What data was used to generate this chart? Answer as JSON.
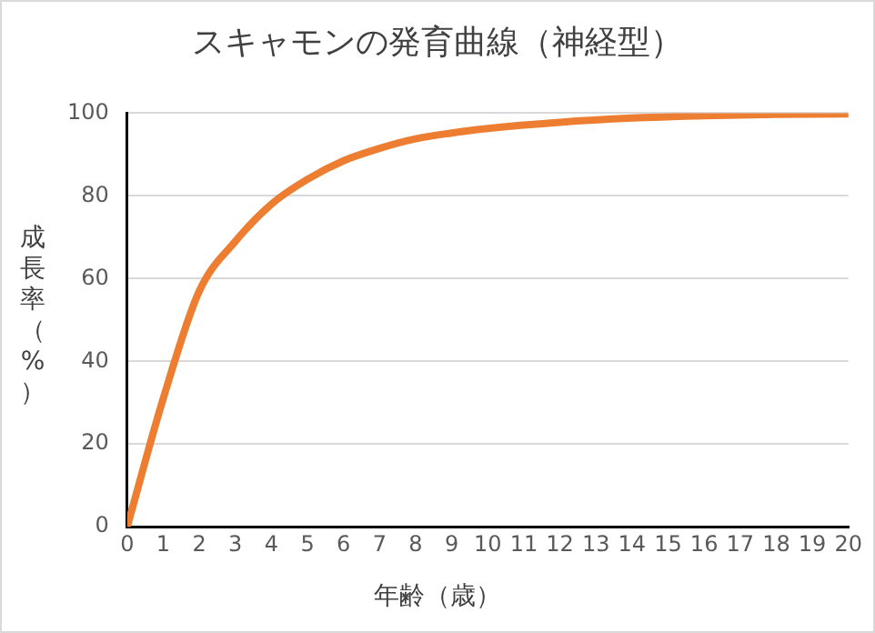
{
  "chart_data": {
    "type": "line",
    "title": "スキャモンの発育曲線（神経型）",
    "xlabel": "年齢（歳）",
    "ylabel": "成長率（%）",
    "x": [
      0,
      1,
      2,
      3,
      4,
      5,
      6,
      7,
      8,
      9,
      10,
      12,
      14,
      16,
      18,
      20
    ],
    "series": [
      {
        "color": "#ed7d31",
        "values": [
          0,
          31,
          57,
          69,
          78,
          84,
          88.5,
          91.5,
          93.8,
          95.2,
          96.3,
          97.8,
          98.8,
          99.4,
          99.7,
          99.8
        ]
      }
    ],
    "xlim": [
      0,
      20
    ],
    "xticks": [
      0,
      1,
      2,
      3,
      4,
      5,
      6,
      7,
      8,
      9,
      10,
      11,
      12,
      13,
      14,
      15,
      16,
      17,
      18,
      19,
      20
    ],
    "ylim": [
      0,
      100
    ],
    "yticks": [
      0,
      20,
      40,
      60,
      80,
      100
    ],
    "grid": "y",
    "legend": false,
    "marker": "none",
    "line_style": "solid"
  }
}
